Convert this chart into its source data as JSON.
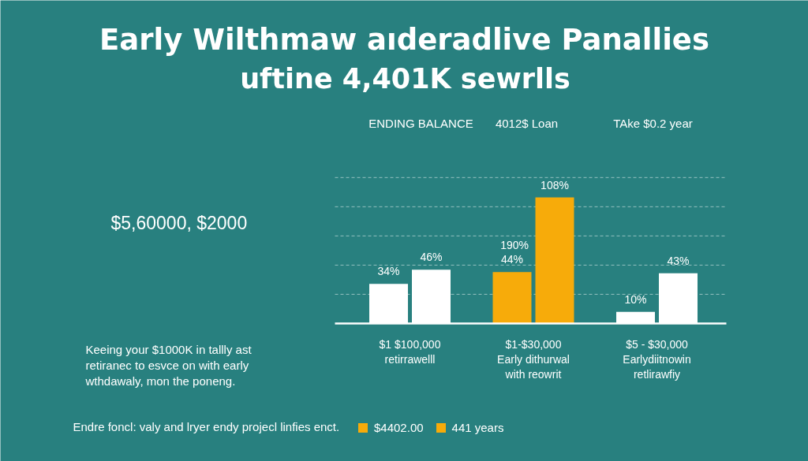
{
  "chart_data": {
    "type": "bar",
    "title": "Early Wilthmaw aıderadlive Panallies",
    "subtitle": "uftine 4,401K sewrlls",
    "categories": [
      "$1 $100,000\nretirrawelll",
      "$1-$30,000\nEarly dithurwal\nwith reowrit",
      "$5 - $30,000\nEarlydiitnowin\nretlirawfiy"
    ],
    "series": [
      {
        "name": "$4402.00",
        "color": "#f7ab0a",
        "colors": [
          "#ffffff",
          "#f7ab0a",
          "#ffffff"
        ],
        "values": [
          34,
          44,
          10
        ],
        "value_labels": [
          "34%",
          "44%",
          "10%"
        ]
      },
      {
        "name": "441 years",
        "color": "#f7ab0a",
        "colors": [
          "#ffffff",
          "#f7ab0a",
          "#ffffff"
        ],
        "values": [
          46,
          108,
          43
        ],
        "value_labels": [
          "46%",
          "108%",
          "43%"
        ]
      }
    ],
    "grid": "y",
    "legend": "bottom",
    "annotations": [
      "ENDING BALANCE",
      "4012$ Loan",
      "TAke $0.2 year",
      {
        "text": "190%",
        "x": "$1-$30,000\nEarly dithurwal\nwith reowrit",
        "y": 44
      },
      "$5,60000, $2000",
      "Keeing your $1000K in tallly ast\nretiranec to esvce on with early\nwthdawaly, mon the poneng.",
      "Endre foncl: valy and lryer endy projecl linfies enct."
    ]
  }
}
